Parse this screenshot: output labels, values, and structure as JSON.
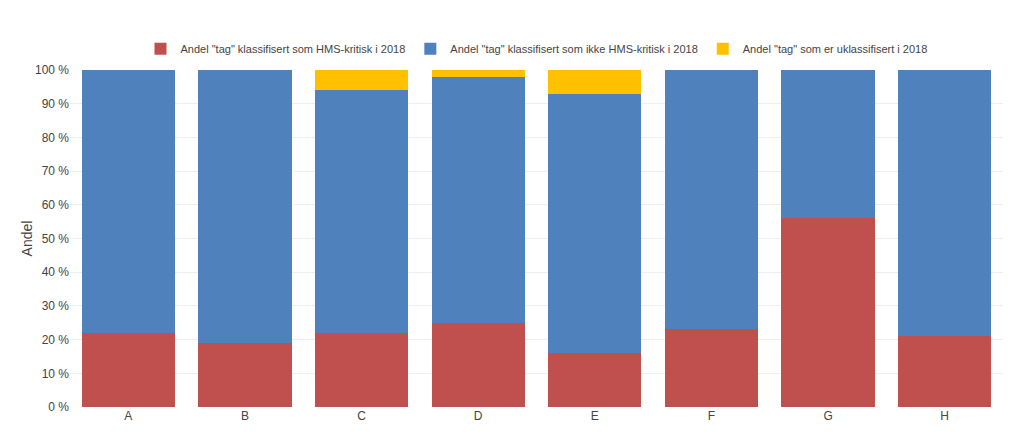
{
  "chart_data": {
    "type": "bar",
    "stacked": true,
    "categories": [
      "A",
      "B",
      "C",
      "D",
      "E",
      "F",
      "G",
      "H"
    ],
    "series": [
      {
        "name": "Andel \"tag\" klassifisert som HMS-kritisk i 2018",
        "color": "#C0504D",
        "values": [
          22,
          19,
          22,
          25,
          16,
          23,
          56,
          21
        ]
      },
      {
        "name": "Andel \"tag\" klassifisert som ikke HMS-kritisk i 2018",
        "color": "#4F81BD",
        "values": [
          78,
          81,
          72,
          73,
          77,
          77,
          44,
          79
        ]
      },
      {
        "name": "Andel \"tag\" som er uklassifisert i 2018",
        "color": "#FFC000",
        "values": [
          0,
          0,
          6,
          2,
          7,
          0,
          0,
          0
        ]
      }
    ],
    "ylabel": "Andel",
    "ylim": [
      0,
      100
    ],
    "yticks": [
      {
        "value": 0,
        "label": "0 %"
      },
      {
        "value": 10,
        "label": "10 %"
      },
      {
        "value": 20,
        "label": "20 %"
      },
      {
        "value": 30,
        "label": "30 %"
      },
      {
        "value": 40,
        "label": "40 %"
      },
      {
        "value": 50,
        "label": "50 %"
      },
      {
        "value": 60,
        "label": "60 %"
      },
      {
        "value": 70,
        "label": "70 %"
      },
      {
        "value": 80,
        "label": "80 %"
      },
      {
        "value": 90,
        "label": "90 %"
      },
      {
        "value": 100,
        "label": "100 %"
      }
    ],
    "grid": true,
    "legend": "top"
  }
}
